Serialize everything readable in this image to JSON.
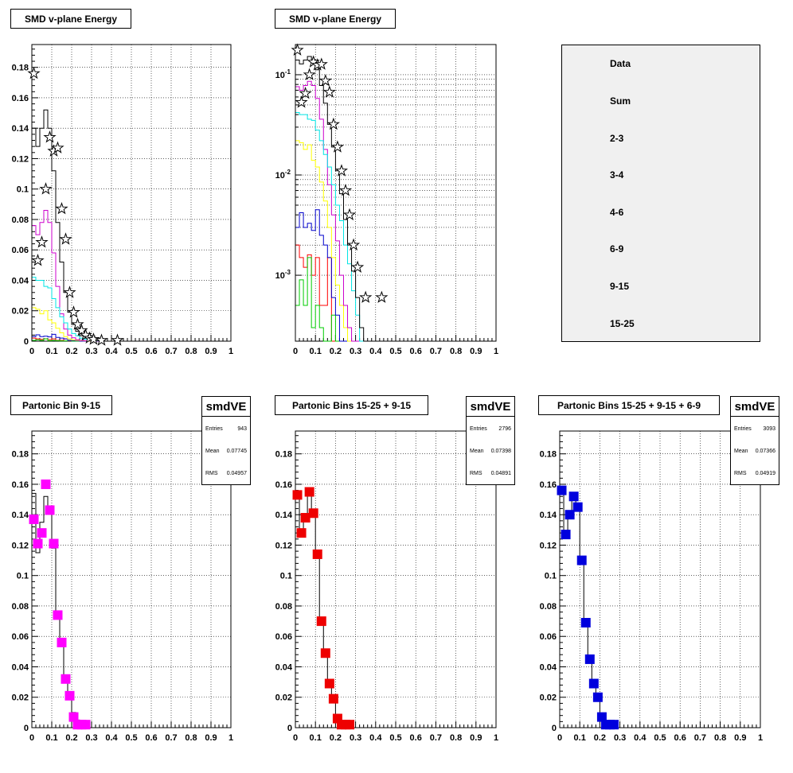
{
  "pads": [
    {
      "title": "SMD v-plane Energy",
      "scale": "linear",
      "ylim": [
        0,
        0.195
      ],
      "yticks": [
        "0",
        "0.02",
        "0.04",
        "0.06",
        "0.08",
        "0.1",
        "0.12",
        "0.14",
        "0.16",
        "0.18"
      ]
    },
    {
      "title": "SMD v-plane Energy",
      "scale": "log",
      "ylim": [
        0.00022,
        0.2
      ],
      "yticks": [
        "10-3",
        "10-2",
        "10-1"
      ]
    },
    {
      "title": "Partonic Bin 9-15",
      "stats": {
        "name": "smdVE",
        "rows": [
          [
            "Entries",
            "943"
          ],
          [
            "Mean",
            "0.07745"
          ],
          [
            "RMS",
            "0.04957"
          ]
        ]
      }
    },
    {
      "title": "Partonic Bins 15-25 + 9-15",
      "stats": {
        "name": "smdVE",
        "rows": [
          [
            "Entries",
            "2796"
          ],
          [
            "Mean",
            "0.07398"
          ],
          [
            "RMS",
            "0.04891"
          ]
        ]
      }
    },
    {
      "title": "Partonic Bins 15-25 + 9-15 + 6-9",
      "stats": {
        "name": "smdVE",
        "rows": [
          [
            "Entries",
            "3093"
          ],
          [
            "Mean",
            "0.07366"
          ],
          [
            "RMS",
            "0.04919"
          ]
        ]
      }
    }
  ],
  "xticks": [
    "0",
    "0.1",
    "0.2",
    "0.3",
    "0.4",
    "0.5",
    "0.6",
    "0.7",
    "0.8",
    "0.9",
    "1"
  ],
  "legend": [
    {
      "label": "Data",
      "color": "#000000",
      "marker": "star"
    },
    {
      "label": "Sum",
      "color": "#000000"
    },
    {
      "label": "2-3",
      "color": "#ff0000"
    },
    {
      "label": "3-4",
      "color": "#00cc00"
    },
    {
      "label": "4-6",
      "color": "#0000cc"
    },
    {
      "label": "6-9",
      "color": "#ffff00"
    },
    {
      "label": "9-15",
      "color": "#cc00cc"
    },
    {
      "label": "15-25",
      "color": "#00e5e5"
    }
  ],
  "chart_data": [
    {
      "type": "line",
      "panel": "SMD v-plane Energy (linear)",
      "bin_width": 0.02,
      "xlim": [
        0,
        1
      ],
      "ylim": [
        0,
        0.195
      ],
      "data": {
        "x": [
          0.01,
          0.03,
          0.05,
          0.07,
          0.09,
          0.11,
          0.13,
          0.15,
          0.17,
          0.19,
          0.21,
          0.23,
          0.25,
          0.27,
          0.29,
          0.31,
          0.35,
          0.43
        ],
        "y": [
          0.176,
          0.053,
          0.065,
          0.1,
          0.134,
          0.125,
          0.127,
          0.087,
          0.067,
          0.032,
          0.019,
          0.011,
          0.007,
          0.004,
          0.002,
          0.0012,
          0.0006,
          0.0006
        ]
      },
      "series": [
        {
          "name": "Sum",
          "color": "#000000",
          "values": [
            0.14,
            0.128,
            0.14,
            0.152,
            0.14,
            0.112,
            0.078,
            0.052,
            0.032,
            0.019,
            0.011,
            0.0065,
            0.0036,
            0.002,
            0.0011,
            0.0006,
            0.0003,
            0.0002
          ]
        },
        {
          "name": "2-3",
          "color": "#ff0000",
          "values": [
            0.002,
            0.0015,
            0.0012,
            0.0016,
            0.001,
            0.0015,
            0.0005,
            0.0005,
            0.0015,
            0.0002,
            0,
            0,
            0,
            0,
            0,
            0,
            0,
            0
          ]
        },
        {
          "name": "3-4",
          "color": "#00cc00",
          "values": [
            0.0005,
            0.0009,
            0.0005,
            0.0015,
            0.0003,
            0.0005,
            0.0003,
            0.0002,
            0.0002,
            0.0004,
            0,
            0,
            0,
            0,
            0,
            0,
            0,
            0
          ]
        },
        {
          "name": "4-6",
          "color": "#0000cc",
          "values": [
            0.003,
            0.0042,
            0.003,
            0.0033,
            0.0028,
            0.0045,
            0.0025,
            0.002,
            0.0015,
            0.0006,
            0.0004,
            0.0002,
            0,
            0,
            0,
            0,
            0,
            0
          ]
        },
        {
          "name": "6-9",
          "color": "#ffff00",
          "values": [
            0.022,
            0.021,
            0.018,
            0.02,
            0.014,
            0.012,
            0.0085,
            0.0055,
            0.003,
            0.0015,
            0.0008,
            0.0005,
            0.0003,
            0.0002,
            0,
            0,
            0,
            0
          ]
        },
        {
          "name": "9-15",
          "color": "#cc00cc",
          "values": [
            0.076,
            0.07,
            0.078,
            0.086,
            0.078,
            0.058,
            0.036,
            0.018,
            0.008,
            0.004,
            0.0022,
            0.001,
            0.0005,
            0.0003,
            0.0002,
            0,
            0,
            0
          ]
        },
        {
          "name": "15-25",
          "color": "#00e5e5",
          "values": [
            0.042,
            0.04,
            0.04,
            0.036,
            0.035,
            0.028,
            0.022,
            0.016,
            0.012,
            0.008,
            0.005,
            0.0035,
            0.002,
            0.0013,
            0.0007,
            0.0004,
            0.0002,
            0
          ]
        }
      ]
    },
    {
      "type": "line",
      "panel": "SMD v-plane Energy (log)",
      "bin_width": 0.02,
      "xlim": [
        0,
        1
      ],
      "ylim": [
        0.00022,
        0.2
      ],
      "same_data_as_panel": 0
    },
    {
      "type": "scatter",
      "panel": "Partonic Bin 9-15",
      "xlim": [
        0,
        1
      ],
      "ylim": [
        0,
        0.195
      ],
      "marker_color": "#ff00ff",
      "data": {
        "x": [
          0.01,
          0.03,
          0.05,
          0.07,
          0.09,
          0.11,
          0.13,
          0.15,
          0.17,
          0.19,
          0.21,
          0.23,
          0.25,
          0.27
        ],
        "y": [
          0.137,
          0.121,
          0.128,
          0.16,
          0.143,
          0.121,
          0.074,
          0.056,
          0.032,
          0.021,
          0.007,
          0.002,
          0.002,
          0.002
        ]
      },
      "line": [
        0.154,
        0.115,
        0.135,
        0.152,
        0.145,
        0.118,
        0.075,
        0.055,
        0.034,
        0.02,
        0.01,
        0.005,
        0.003,
        0.002
      ]
    },
    {
      "type": "scatter",
      "panel": "Partonic Bins 15-25 + 9-15",
      "xlim": [
        0,
        1
      ],
      "ylim": [
        0,
        0.195
      ],
      "marker_color": "#ee0000",
      "data": {
        "x": [
          0.01,
          0.03,
          0.05,
          0.07,
          0.09,
          0.11,
          0.13,
          0.15,
          0.17,
          0.19,
          0.21,
          0.23,
          0.25,
          0.27
        ],
        "y": [
          0.153,
          0.128,
          0.138,
          0.155,
          0.141,
          0.114,
          0.07,
          0.049,
          0.029,
          0.019,
          0.006,
          0.002,
          0.002,
          0.002
        ]
      },
      "line": [
        0.152,
        0.128,
        0.138,
        0.155,
        0.14,
        0.114,
        0.07,
        0.049,
        0.029,
        0.019,
        0.006,
        0.002,
        0.002,
        0.002
      ]
    },
    {
      "type": "scatter",
      "panel": "Partonic Bins 15-25 + 9-15 + 6-9",
      "xlim": [
        0,
        1
      ],
      "ylim": [
        0,
        0.195
      ],
      "marker_color": "#0000dd",
      "data": {
        "x": [
          0.01,
          0.03,
          0.05,
          0.07,
          0.09,
          0.11,
          0.13,
          0.15,
          0.17,
          0.19,
          0.21,
          0.23,
          0.25,
          0.27
        ],
        "y": [
          0.156,
          0.127,
          0.14,
          0.152,
          0.145,
          0.11,
          0.069,
          0.045,
          0.029,
          0.02,
          0.007,
          0.002,
          0.002,
          0.002
        ]
      },
      "line": [
        0.156,
        0.127,
        0.14,
        0.152,
        0.145,
        0.11,
        0.069,
        0.045,
        0.029,
        0.02,
        0.007,
        0.002,
        0.002,
        0.002
      ]
    }
  ]
}
